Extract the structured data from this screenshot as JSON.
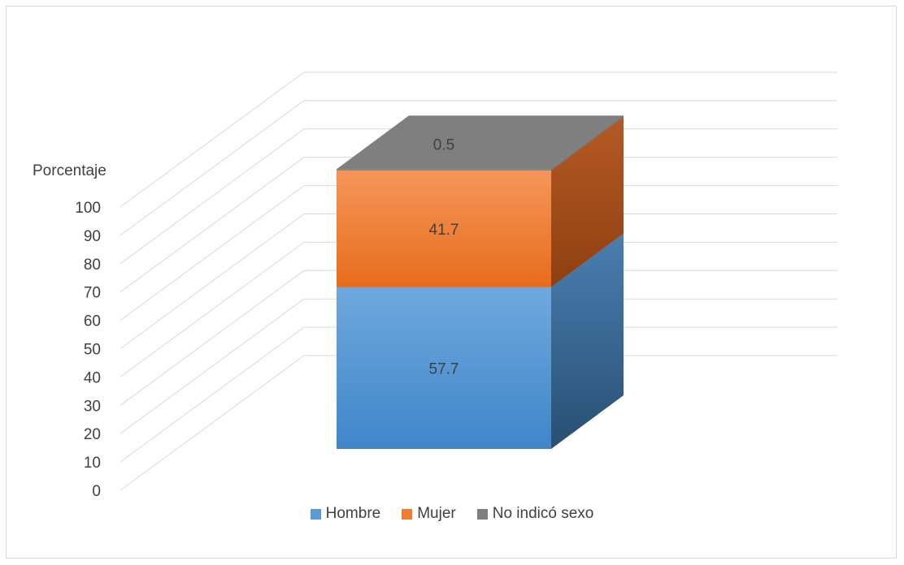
{
  "chart_data": {
    "type": "bar",
    "stacked": true,
    "three_d": true,
    "categories": [
      ""
    ],
    "ylabel": "Porcentaje",
    "ylim": [
      0,
      100
    ],
    "yticks": [
      0,
      10,
      20,
      30,
      40,
      50,
      60,
      70,
      80,
      90,
      100
    ],
    "grid": true,
    "legend_position": "bottom",
    "series": [
      {
        "name": "Hombre",
        "values": [
          57.7
        ],
        "label": "57.7",
        "color": "#5b9bd5"
      },
      {
        "name": "Mujer",
        "values": [
          41.7
        ],
        "label": "41.7",
        "color": "#ed7d31"
      },
      {
        "name": "No indicó sexo",
        "values": [
          0.5
        ],
        "label": "0.5",
        "color": "#7f7f7f"
      }
    ]
  }
}
